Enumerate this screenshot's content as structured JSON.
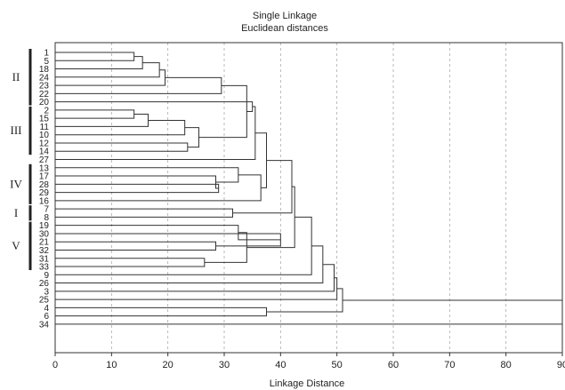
{
  "chart_data": {
    "type": "dendrogram",
    "title": "Single Linkage",
    "subtitle": "Euclidean distances",
    "xlabel": "Linkage Distance",
    "xlim": [
      0,
      90
    ],
    "xticks": [
      0,
      10,
      20,
      30,
      40,
      50,
      60,
      70,
      80,
      90
    ],
    "grid": "vertical dashed",
    "leaves": [
      "1",
      "5",
      "18",
      "24",
      "23",
      "22",
      "20",
      "2",
      "15",
      "11",
      "10",
      "12",
      "14",
      "27",
      "13",
      "17",
      "28",
      "29",
      "16",
      "7",
      "8",
      "19",
      "30",
      "21",
      "32",
      "31",
      "33",
      "9",
      "26",
      "3",
      "25",
      "4",
      "6",
      "34"
    ],
    "merges": [
      {
        "a": "1",
        "b": "5",
        "height": 14
      },
      {
        "a": "1-5",
        "b": "18",
        "height": 15.5
      },
      {
        "a": "1-18",
        "b": "24",
        "height": 18.5
      },
      {
        "a": "1-24",
        "b": "23",
        "height": 19.5
      },
      {
        "a": "1-23",
        "b": "22",
        "height": 29.5
      },
      {
        "a": "2",
        "b": "15",
        "height": 14
      },
      {
        "a": "2-15",
        "b": "11",
        "height": 16.5
      },
      {
        "a": "2-11",
        "b": "10",
        "height": 23
      },
      {
        "a": "12",
        "b": "14",
        "height": 23.5
      },
      {
        "a": "2-10",
        "b": "12-14",
        "height": 25.5
      },
      {
        "a": "1-22",
        "b": "2-14",
        "height": 34
      },
      {
        "a": "1-14",
        "b": "20",
        "height": 35
      },
      {
        "a": "1-20",
        "b": "27",
        "height": 35.5
      },
      {
        "a": "28",
        "b": "29",
        "height": 29
      },
      {
        "a": "17",
        "b": "28-29",
        "height": 28.5
      },
      {
        "a": "13",
        "b": "17-29",
        "height": 32.5
      },
      {
        "a": "13-29",
        "b": "16",
        "height": 36.5
      },
      {
        "a": "1-27",
        "b": "13-16",
        "height": 37.5
      },
      {
        "a": "7",
        "b": "8",
        "height": 31.5
      },
      {
        "a": "1-16",
        "b": "7-8",
        "height": 42
      },
      {
        "a": "21",
        "b": "32",
        "height": 28.5
      },
      {
        "a": "30",
        "b": "21-32",
        "height": 40
      },
      {
        "a": "19",
        "b": "30-32",
        "height": 32.5
      },
      {
        "a": "31",
        "b": "33",
        "height": 26.5
      },
      {
        "a": "19-32",
        "b": "31-33",
        "height": 34
      },
      {
        "a": "1-8",
        "b": "19-33",
        "height": 42.5
      },
      {
        "a": "1-33",
        "b": "9",
        "height": 45.5
      },
      {
        "a": "1-9",
        "b": "26",
        "height": 47.5
      },
      {
        "a": "1-26",
        "b": "3",
        "height": 49.5
      },
      {
        "a": "1-3",
        "b": "25",
        "height": 50
      },
      {
        "a": "4",
        "b": "6",
        "height": 37.5
      },
      {
        "a": "1-25",
        "b": "4-6",
        "height": 51
      },
      {
        "a": "1-6",
        "b": "34",
        "height": 90
      }
    ],
    "groups": [
      {
        "label": "II",
        "from": "1",
        "to": "20"
      },
      {
        "label": "III",
        "from": "2",
        "to": "14"
      },
      {
        "label": "IV",
        "from": "13",
        "to": "16"
      },
      {
        "label": "I",
        "from": "7",
        "to": "8"
      },
      {
        "label": "V",
        "from": "19",
        "to": "33"
      }
    ]
  }
}
